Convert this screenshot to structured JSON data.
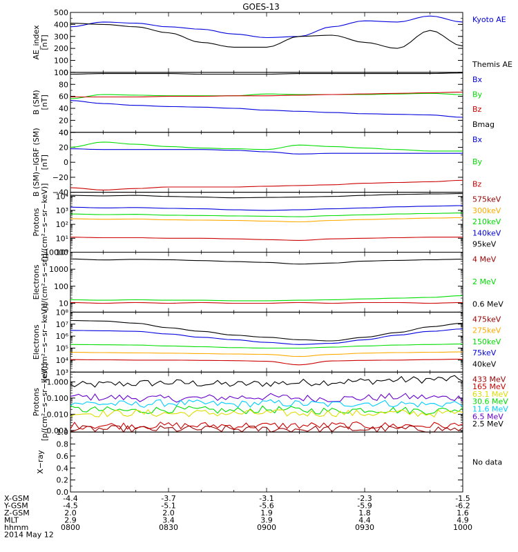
{
  "title": "GOES-13",
  "colors": {
    "black": "#000000",
    "blue": "#0000dd",
    "green": "#00dd00",
    "red": "#cc0000",
    "orange": "#ffaa00",
    "cyan": "#00ccff",
    "yellow": "#dddd00",
    "purple": "#6600cc",
    "darkred": "#990000"
  },
  "footer": {
    "rows": [
      {
        "label": "X-GSM",
        "values": [
          "-4.4",
          "-3.7",
          "-3.1",
          "-2.3",
          "-1.5"
        ]
      },
      {
        "label": "Y-GSM",
        "values": [
          "-4.5",
          "-5.1",
          "-5.6",
          "-5.9",
          "-6.2"
        ]
      },
      {
        "label": "Z-GSM",
        "values": [
          "2.0",
          "2.0",
          "1.9",
          "1.8",
          "1.6"
        ]
      },
      {
        "label": "MLT",
        "values": [
          "2.9",
          "3.4",
          "3.9",
          "4.4",
          "4.9"
        ]
      },
      {
        "label": "hhmm",
        "values": [
          "0800",
          "0830",
          "0900",
          "0930",
          "1000"
        ]
      }
    ],
    "date": "2014 May 12"
  },
  "chart_data": [
    {
      "type": "line",
      "ylabel": [
        "AE_index",
        "[nT]"
      ],
      "scale": "linear",
      "ylim": [
        0,
        500
      ],
      "ticks": [
        "0",
        "100",
        "200",
        "300",
        "400",
        "500"
      ],
      "tickvals": [
        0,
        100,
        200,
        300,
        400,
        500
      ],
      "minorStep": 50,
      "x": [
        "08:00",
        "08:10",
        "08:20",
        "08:30",
        "08:40",
        "08:50",
        "09:00",
        "09:10",
        "09:20",
        "09:30",
        "09:40",
        "09:50",
        "10:00"
      ],
      "series": [
        {
          "name": "Kyoto AE",
          "color": "blue",
          "values": [
            380,
            420,
            410,
            380,
            360,
            320,
            290,
            300,
            380,
            430,
            420,
            470,
            420
          ]
        },
        {
          "name": "Themis AE",
          "color": "black",
          "values": [
            410,
            400,
            380,
            330,
            250,
            210,
            210,
            300,
            310,
            250,
            200,
            350,
            220
          ]
        }
      ],
      "legend": [
        {
          "text": "Kyoto AE",
          "color": "blue"
        },
        {
          "text": "Themis AE",
          "color": "black"
        }
      ]
    },
    {
      "type": "line",
      "ylabel": [
        "B (SM)",
        "[nT]"
      ],
      "scale": "linear",
      "ylim": [
        0,
        100
      ],
      "ticks": [
        "0",
        "20",
        "40",
        "60",
        "80",
        "100"
      ],
      "tickvals": [
        0,
        20,
        40,
        60,
        80,
        100
      ],
      "minorStep": 10,
      "x": [
        "08:00",
        "08:10",
        "08:20",
        "08:30",
        "08:40",
        "08:50",
        "09:00",
        "09:10",
        "09:20",
        "09:30",
        "09:40",
        "09:50",
        "10:00"
      ],
      "series": [
        {
          "name": "Bmag",
          "color": "black",
          "values": [
            97,
            98,
            98,
            98,
            97,
            97,
            97,
            98,
            98,
            98,
            98,
            98,
            99
          ]
        },
        {
          "name": "By",
          "color": "green",
          "values": [
            56,
            63,
            62,
            61,
            61,
            61,
            64,
            63,
            63,
            63,
            64,
            65,
            63
          ]
        },
        {
          "name": "Bz",
          "color": "red",
          "values": [
            59,
            59,
            59,
            60,
            60,
            61,
            61,
            62,
            63,
            64,
            65,
            66,
            67
          ]
        },
        {
          "name": "Bx",
          "color": "blue",
          "values": [
            53,
            48,
            45,
            43,
            42,
            40,
            37,
            35,
            33,
            31,
            30,
            29,
            25
          ]
        }
      ],
      "legend": [
        {
          "text": "Bx",
          "color": "blue"
        },
        {
          "text": "By",
          "color": "green"
        },
        {
          "text": "Bz",
          "color": "red"
        },
        {
          "text": "Bmag",
          "color": "black"
        }
      ]
    },
    {
      "type": "line",
      "ylabel": [
        "B (SM)−IGRF (SM)",
        "[nT]"
      ],
      "scale": "linear",
      "ylim": [
        -40,
        40
      ],
      "ticks": [
        "−40",
        "−20",
        "0",
        "20",
        "40"
      ],
      "tickvals": [
        -40,
        -20,
        0,
        20,
        40
      ],
      "minorStep": 10,
      "x": [
        "08:00",
        "08:10",
        "08:20",
        "08:30",
        "08:40",
        "08:50",
        "09:00",
        "09:10",
        "09:20",
        "09:30",
        "09:40",
        "09:50",
        "10:00"
      ],
      "series": [
        {
          "name": "By",
          "color": "green",
          "values": [
            20,
            27,
            24,
            21,
            19,
            18,
            17,
            23,
            21,
            19,
            17,
            15,
            15
          ]
        },
        {
          "name": "Bx",
          "color": "blue",
          "values": [
            18,
            17,
            17,
            17,
            17,
            16,
            14,
            11,
            12,
            12,
            12,
            12,
            12
          ]
        },
        {
          "name": "Bz",
          "color": "red",
          "values": [
            -34,
            -37,
            -35,
            -33,
            -33,
            -33,
            -32,
            -31,
            -30,
            -28,
            -27,
            -26,
            -24
          ]
        }
      ],
      "legend": [
        {
          "text": "Bx",
          "color": "blue"
        },
        {
          "text": "By",
          "color": "green"
        },
        {
          "text": "Bz",
          "color": "red"
        }
      ]
    },
    {
      "type": "line",
      "ylabel": [
        "Protons",
        "[p/(cm²−s−sr−keV)]"
      ],
      "scale": "log",
      "ylim": [
        1,
        20000
      ],
      "ticks": [
        "10⁰",
        "10¹",
        "10²",
        "10³",
        "10⁴"
      ],
      "tickvals": [
        1,
        10,
        100,
        1000,
        10000
      ],
      "x": [
        "08:00",
        "08:10",
        "08:20",
        "08:30",
        "08:40",
        "08:50",
        "09:00",
        "09:10",
        "09:20",
        "09:30",
        "09:40",
        "09:50",
        "10:00"
      ],
      "series": [
        {
          "name": "575keV",
          "color": "black",
          "values": [
            12000,
            11000,
            12000,
            10000,
            9000,
            8000,
            8500,
            9000,
            10000,
            12000,
            14000,
            15000,
            16000
          ]
        },
        {
          "name": "300keV",
          "color": "blue",
          "values": [
            1700,
            1500,
            1600,
            1400,
            1300,
            1100,
            1000,
            1100,
            1300,
            1500,
            1800,
            2000,
            2200
          ]
        },
        {
          "name": "210keV",
          "color": "green",
          "values": [
            550,
            500,
            520,
            450,
            430,
            400,
            380,
            350,
            420,
            480,
            550,
            600,
            650
          ]
        },
        {
          "name": "140keV",
          "color": "orange",
          "values": [
            250,
            230,
            240,
            210,
            200,
            190,
            170,
            150,
            190,
            220,
            250,
            280,
            300
          ]
        },
        {
          "name": "95keV",
          "color": "red",
          "values": [
            12,
            11,
            11,
            10,
            10,
            9,
            8,
            7,
            9,
            10,
            11,
            12,
            12
          ]
        }
      ],
      "legend": [
        {
          "text": "575keV",
          "color": "darkred"
        },
        {
          "text": "300keV",
          "color": "orange"
        },
        {
          "text": "210keV",
          "color": "green"
        },
        {
          "text": "140keV",
          "color": "blue"
        },
        {
          "text": "95keV",
          "color": "black"
        }
      ]
    },
    {
      "type": "line",
      "ylabel": [
        "Electrons",
        "[e/(cm²−s−sr)]"
      ],
      "scale": "log",
      "ylim": [
        3,
        10000
      ],
      "ticks": [
        "10",
        "100",
        "1000",
        "10000"
      ],
      "tickvals": [
        10,
        100,
        1000,
        10000
      ],
      "x": [
        "08:00",
        "08:10",
        "08:20",
        "08:30",
        "08:40",
        "08:50",
        "09:00",
        "09:10",
        "09:20",
        "09:30",
        "09:40",
        "09:50",
        "10:00"
      ],
      "series": [
        {
          "name": "4 MeV",
          "color": "black",
          "values": [
            4000,
            3500,
            3800,
            3600,
            3200,
            2800,
            2500,
            2000,
            2300,
            3000,
            3300,
            3600,
            3900
          ]
        },
        {
          "name": "2 MeV",
          "color": "green",
          "values": [
            16,
            15,
            16,
            15,
            15,
            14,
            14,
            15,
            16,
            18,
            20,
            22,
            28
          ]
        },
        {
          "name": "0.6 MeV",
          "color": "red",
          "values": [
            11,
            10,
            11,
            10,
            11,
            10,
            10,
            11,
            10,
            11,
            11,
            10,
            11
          ]
        }
      ],
      "legend": [
        {
          "text": "4 MeV",
          "color": "darkred"
        },
        {
          "text": "2 MeV",
          "color": "green"
        },
        {
          "text": "0.6 MeV",
          "color": "black"
        }
      ]
    },
    {
      "type": "line",
      "ylabel": [
        "Electrons",
        "[e/(cm²−s−sr−keV)]"
      ],
      "scale": "log",
      "ylim": [
        1000,
        100000000
      ],
      "ticks": [
        "10³",
        "10⁴",
        "10⁵",
        "10⁶",
        "10⁷",
        "10⁸"
      ],
      "tickvals": [
        1000,
        10000,
        100000,
        1000000,
        10000000,
        100000000
      ],
      "x": [
        "08:00",
        "08:10",
        "08:20",
        "08:30",
        "08:40",
        "08:50",
        "09:00",
        "09:10",
        "09:20",
        "09:30",
        "09:40",
        "09:50",
        "10:00"
      ],
      "series": [
        {
          "name": "475keV",
          "color": "black",
          "values": [
            20000000,
            18000000,
            12000000,
            5000000,
            2500000,
            1200000,
            800000,
            500000,
            400000,
            800000,
            2000000,
            6000000,
            12000000
          ]
        },
        {
          "name": "275keV",
          "color": "blue",
          "values": [
            3000000,
            2800000,
            2500000,
            1500000,
            800000,
            500000,
            300000,
            200000,
            250000,
            500000,
            1200000,
            2500000,
            4000000
          ]
        },
        {
          "name": "150keV",
          "color": "green",
          "values": [
            200000,
            190000,
            180000,
            150000,
            130000,
            110000,
            100000,
            100000,
            120000,
            150000,
            180000,
            200000,
            220000
          ]
        },
        {
          "name": "75keV",
          "color": "orange",
          "values": [
            45000,
            42000,
            40000,
            38000,
            35000,
            32000,
            30000,
            20000,
            30000,
            38000,
            42000,
            45000,
            48000
          ]
        },
        {
          "name": "40keV",
          "color": "red",
          "values": [
            11000,
            10500,
            10000,
            10000,
            9500,
            9000,
            8000,
            4000,
            8500,
            9500,
            10000,
            11000,
            12000
          ]
        }
      ],
      "legend": [
        {
          "text": "475keV",
          "color": "darkred"
        },
        {
          "text": "275keV",
          "color": "orange"
        },
        {
          "text": "150keV",
          "color": "green"
        },
        {
          "text": "75keV",
          "color": "blue"
        },
        {
          "text": "40keV",
          "color": "black"
        }
      ]
    },
    {
      "type": "line",
      "ylabel": [
        "Protons",
        "[p/(cm²−s−sr−keV)]"
      ],
      "scale": "log",
      "ylim": [
        0.0008,
        4
      ],
      "ticks": [
        "0.001",
        "0.010",
        "0.100",
        "1.000"
      ],
      "tickvals": [
        0.001,
        0.01,
        0.1,
        1
      ],
      "noisy": true,
      "x": [
        "08:00",
        "08:10",
        "08:20",
        "08:30",
        "08:40",
        "08:50",
        "09:00",
        "09:10",
        "09:20",
        "09:30",
        "09:40",
        "09:50",
        "10:00"
      ],
      "series": [
        {
          "name": "433 MeV",
          "color": "black",
          "values": [
            0.6,
            0.7,
            0.8,
            0.9,
            0.8,
            0.7,
            0.8,
            0.9,
            1.0,
            1.1,
            1.3,
            1.4,
            1.5
          ]
        },
        {
          "name": "165 MeV",
          "color": "purple",
          "values": [
            0.12,
            0.11,
            0.1,
            0.09,
            0.1,
            0.11,
            0.12,
            0.1,
            0.09,
            0.1,
            0.12,
            0.11,
            0.1
          ]
        },
        {
          "name": "63.1 MeV",
          "color": "cyan",
          "values": [
            0.05,
            0.045,
            0.04,
            0.05,
            0.045,
            0.04,
            0.05,
            0.045,
            0.04,
            0.05,
            0.045,
            0.04,
            0.05
          ]
        },
        {
          "name": "30.6 MeV",
          "color": "green",
          "values": [
            0.02,
            0.018,
            0.016,
            0.02,
            0.018,
            0.016,
            0.02,
            0.018,
            0.016,
            0.02,
            0.018,
            0.016,
            0.02
          ]
        },
        {
          "name": "11.6 MeV",
          "color": "yellow",
          "values": [
            0.012,
            0.011,
            0.012,
            0.011,
            0.012,
            0.011,
            0.012,
            0.011,
            0.012,
            0.011,
            0.012,
            0.011,
            0.012
          ]
        },
        {
          "name": "6.5 MeV",
          "color": "red",
          "values": [
            0.002,
            0.002,
            0.002,
            0.002,
            0.002,
            0.002,
            0.002,
            0.002,
            0.002,
            0.002,
            0.002,
            0.002,
            0.002
          ]
        },
        {
          "name": "2.5 MeV",
          "color": "darkred",
          "values": [
            0.0012,
            0.0012,
            0.0012,
            0.0012,
            0.0012,
            0.0012,
            0.0012,
            0.0012,
            0.0012,
            0.0012,
            0.0012,
            0.0012,
            0.0012
          ]
        }
      ],
      "legend": [
        {
          "text": "433 MeV",
          "color": "darkred"
        },
        {
          "text": "165 MeV",
          "color": "red"
        },
        {
          "text": "63.1 MeV",
          "color": "yellow"
        },
        {
          "text": "30.6 MeV",
          "color": "green"
        },
        {
          "text": "11.6 MeV",
          "color": "cyan"
        },
        {
          "text": "6.5 MeV",
          "color": "purple"
        },
        {
          "text": "2.5 MeV",
          "color": "black"
        }
      ]
    },
    {
      "type": "line",
      "ylabel": [
        "X−ray"
      ],
      "scale": "linear",
      "ylim": [
        0,
        1
      ],
      "ticks": [
        "0.0",
        "0.2",
        "0.4",
        "0.6",
        "0.8",
        "1.0"
      ],
      "tickvals": [
        0,
        0.2,
        0.4,
        0.6,
        0.8,
        1.0
      ],
      "minorStep": 0.1,
      "x": [
        "08:00",
        "08:10",
        "08:20",
        "08:30",
        "08:40",
        "08:50",
        "09:00",
        "09:10",
        "09:20",
        "09:30",
        "09:40",
        "09:50",
        "10:00"
      ],
      "series": [],
      "legend": [
        {
          "text": "No data",
          "color": "black"
        }
      ]
    }
  ]
}
